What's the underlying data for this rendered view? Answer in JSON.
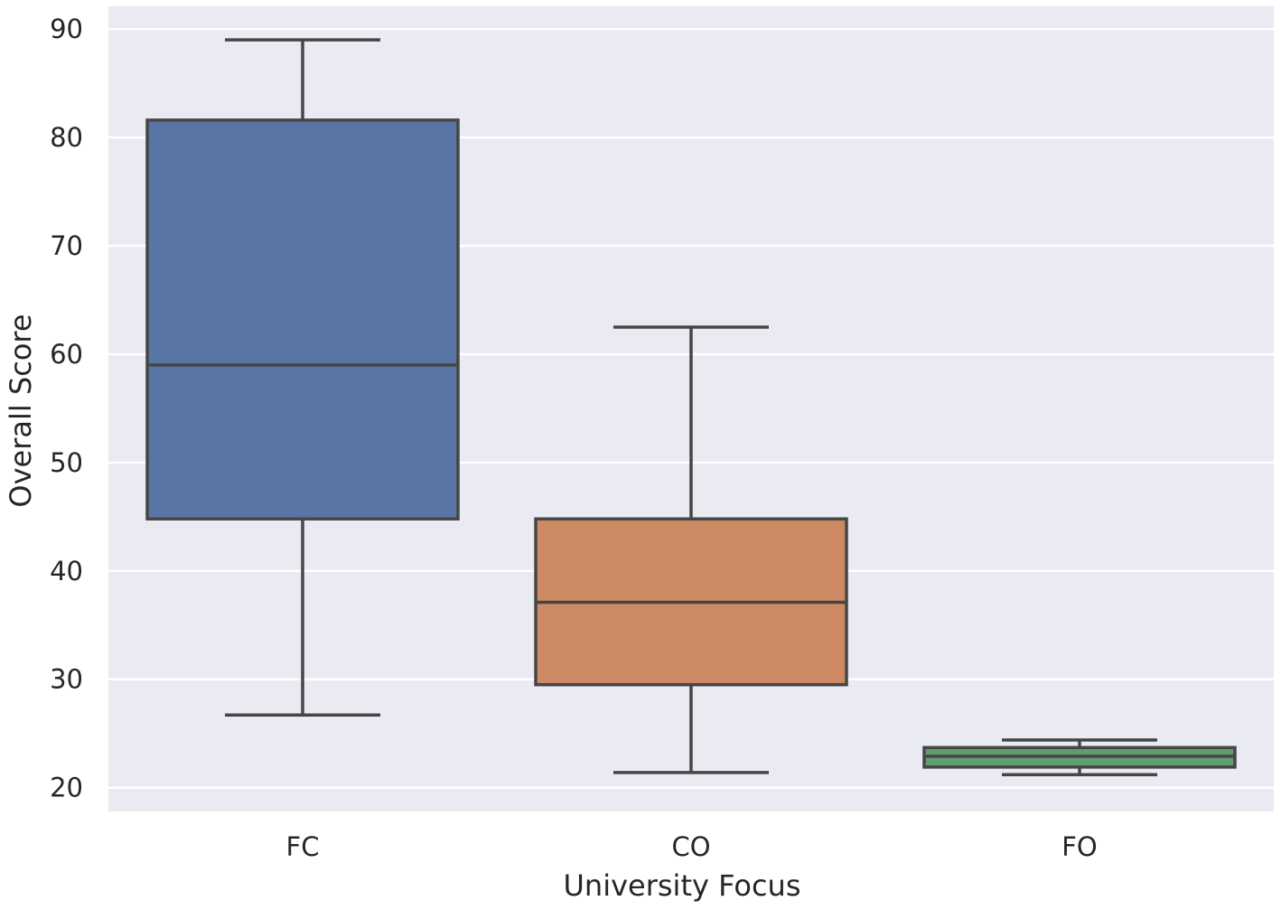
{
  "chart_data": {
    "type": "box",
    "title": "",
    "xlabel": "University Focus",
    "ylabel": "Overall Score",
    "ylim": [
      17.8,
      92.1
    ],
    "yticks": [
      20,
      30,
      40,
      50,
      60,
      70,
      80,
      90
    ],
    "grid": true,
    "legend": "none",
    "categories": [
      "FC",
      "CO",
      "FO"
    ],
    "boxes": [
      {
        "category": "FC",
        "whisker_low": 26.7,
        "q1": 44.8,
        "median": 59.0,
        "q3": 81.6,
        "whisker_high": 89.0,
        "color": "#5875a4"
      },
      {
        "category": "CO",
        "whisker_low": 21.4,
        "q1": 29.5,
        "median": 37.1,
        "q3": 44.8,
        "whisker_high": 62.5,
        "color": "#cc8963"
      },
      {
        "category": "FO",
        "whisker_low": 21.2,
        "q1": 21.9,
        "median": 22.9,
        "q3": 23.7,
        "whisker_high": 24.4,
        "color": "#5f9e6e"
      }
    ],
    "colors": {
      "plot_background": "#eaeaf2",
      "edge": "#464646",
      "grid": "#ffffff"
    }
  }
}
